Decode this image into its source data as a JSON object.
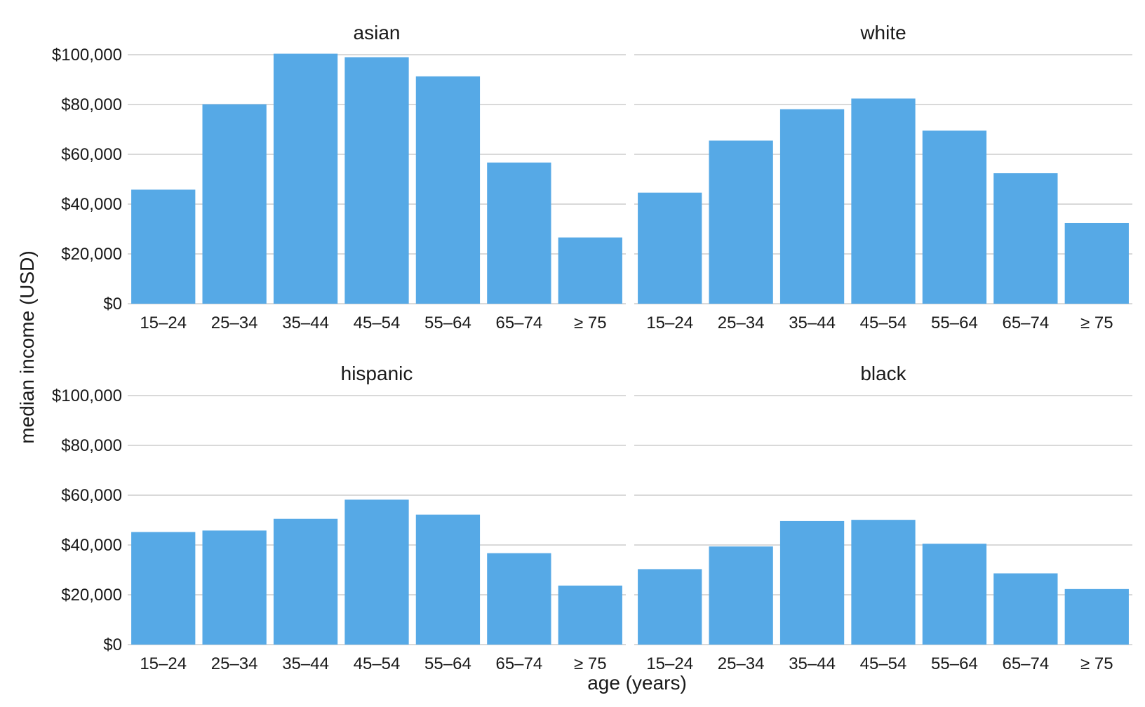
{
  "chart_data": {
    "type": "bar",
    "layout": "facet-grid 2x2",
    "xlabel": "age (years)",
    "ylabel": "median income (USD)",
    "ylim": [
      0,
      100000
    ],
    "yticks": [
      0,
      20000,
      40000,
      60000,
      80000,
      100000
    ],
    "ytick_labels": [
      "$0",
      "$20,000",
      "$40,000",
      "$60,000",
      "$80,000",
      "$100,000"
    ],
    "categories": [
      "15–24",
      "25–34",
      "35–44",
      "45–54",
      "55–64",
      "65–74",
      "≥ 75"
    ],
    "bar_color": "#56A9E6",
    "grid": true,
    "panels": [
      {
        "title": "asian",
        "values": [
          45800,
          80100,
          100400,
          99000,
          91300,
          56700,
          26600
        ]
      },
      {
        "title": "white",
        "values": [
          44600,
          65500,
          78100,
          82400,
          69500,
          52400,
          32400
        ]
      },
      {
        "title": "hispanic",
        "values": [
          45200,
          45800,
          50500,
          58200,
          52200,
          36700,
          23700
        ]
      },
      {
        "title": "black",
        "values": [
          30300,
          39400,
          49600,
          50100,
          40500,
          28600,
          22300
        ]
      }
    ]
  }
}
